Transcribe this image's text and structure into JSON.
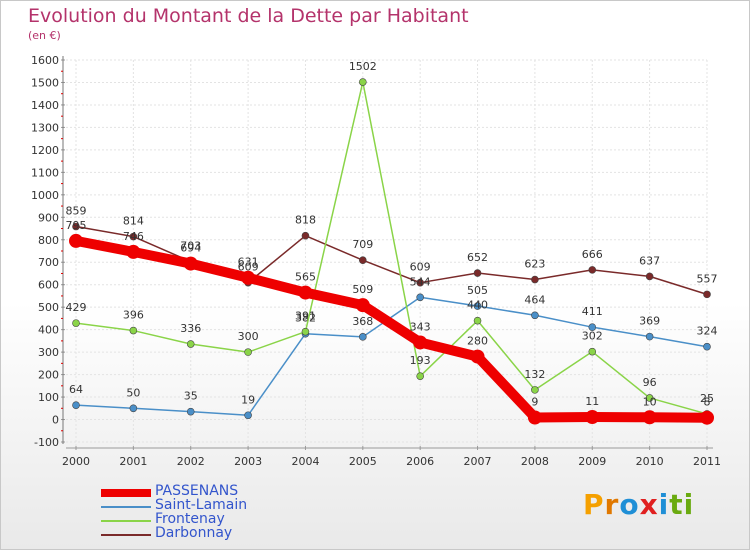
{
  "title": "Evolution du Montant de la Dette par Habitant",
  "subtitle": "(en €)",
  "brand": {
    "letters": [
      "P",
      "r",
      "o",
      "x",
      "i",
      "t",
      "i"
    ],
    "colors": [
      "#f5a000",
      "#e07800",
      "#1f8fd6",
      "#e02020",
      "#1f8fd6",
      "#6aaa10",
      "#6aaa10"
    ]
  },
  "chart_data": {
    "type": "line",
    "x": [
      "2000",
      "2001",
      "2002",
      "2003",
      "2004",
      "2005",
      "2006",
      "2007",
      "2008",
      "2009",
      "2010",
      "2011"
    ],
    "yticks": [
      "-100",
      "0",
      "100",
      "200",
      "300",
      "400",
      "500",
      "600",
      "700",
      "800",
      "900",
      "1000",
      "1100",
      "1200",
      "1300",
      "1400",
      "1500",
      "1600"
    ],
    "ylim": [
      -100,
      1600
    ],
    "grid": true,
    "legend_position": "bottom-left",
    "series": [
      {
        "name": "Darbonnay",
        "color": "#7a2a2a",
        "values": [
          859,
          814,
          703,
          609,
          818,
          709,
          609,
          652,
          623,
          666,
          637,
          557
        ],
        "labels": [
          "859",
          "814",
          "703",
          "609",
          "818",
          "709",
          "609",
          "652",
          "623",
          "666",
          "637",
          "557"
        ]
      },
      {
        "name": "Saint-Lamain",
        "color": "#4a8fc8",
        "values": [
          64,
          50,
          35,
          19,
          382,
          368,
          544,
          505,
          464,
          411,
          369,
          324
        ],
        "labels": [
          "64",
          "50",
          "35",
          "19",
          "382",
          "368",
          "544",
          "505",
          "464",
          "411",
          "369",
          "324"
        ]
      },
      {
        "name": "Frontenay",
        "color": "#8ad448",
        "values": [
          429,
          396,
          336,
          300,
          391,
          1502,
          193,
          440,
          132,
          302,
          96,
          25
        ],
        "labels": [
          "429",
          "396",
          "336",
          "300",
          "391",
          "1502",
          "193",
          "440",
          "132",
          "302",
          "96",
          "25"
        ]
      },
      {
        "name": "PASSENANS",
        "color": "#ee0000",
        "values": [
          795,
          746,
          694,
          631,
          565,
          509,
          343,
          280,
          9,
          11,
          10,
          8
        ],
        "labels": [
          "795",
          "746",
          "694",
          "631",
          "565",
          "509",
          "343",
          "280",
          "9",
          "11",
          "10",
          "8"
        ]
      }
    ],
    "legend": [
      {
        "name": "PASSENANS",
        "color": "#ee0000",
        "thickness": 8
      },
      {
        "name": "Saint-Lamain",
        "color": "#4a8fc8",
        "thickness": 2
      },
      {
        "name": "Frontenay",
        "color": "#8ad448",
        "thickness": 2
      },
      {
        "name": "Darbonnay",
        "color": "#7a2a2a",
        "thickness": 2
      }
    ]
  }
}
